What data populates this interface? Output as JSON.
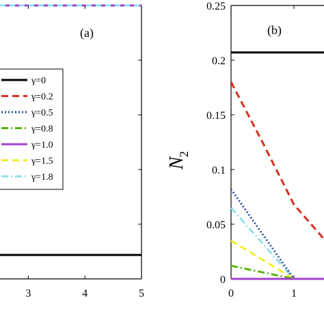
{
  "colors": {
    "black": "#000000",
    "red": "#d7301f",
    "blue": "#2c4c9c",
    "green": "#59b30a",
    "magenta": "#a23fd0",
    "yellow": "#f2ee2e",
    "cyan": "#8fe0e8"
  },
  "chart_data": [
    {
      "type": "line",
      "panel_label": "(a)",
      "xlabel": "",
      "ylabel": "",
      "xlim": [
        2.5,
        5
      ],
      "x_ticks": [
        "3",
        "4",
        "5"
      ],
      "legend": {
        "placement": "left",
        "entries": [
          {
            "label": "γ=0",
            "color": "#000000",
            "style": "solid"
          },
          {
            "label": "γ=0.2",
            "color": "#d7301f",
            "style": "dash"
          },
          {
            "label": "γ=0.5",
            "color": "#2c4c9c",
            "style": "dot"
          },
          {
            "label": "γ=0.8",
            "color": "#59b30a",
            "style": "dashdot"
          },
          {
            "label": "γ=1.0",
            "color": "#a23fd0",
            "style": "solid"
          },
          {
            "label": "γ=1.5",
            "color": "#f2ee2e",
            "style": "dash"
          },
          {
            "label": "γ=1.8",
            "color": "#8fe0e8",
            "style": "dashdot"
          }
        ]
      },
      "series": [
        {
          "name": "γ=0",
          "x": [
            2.5,
            5
          ],
          "y": [
            "bottom",
            "bottom"
          ]
        },
        {
          "name": "γ=1.0",
          "x": [
            2.5,
            5
          ],
          "y": [
            "top",
            "top"
          ]
        }
      ]
    },
    {
      "type": "line",
      "panel_label": "(b)",
      "ylabel_main": "N",
      "ylabel_sub": "2",
      "xlabel": "",
      "xlim": [
        0,
        1.5
      ],
      "ylim": [
        0,
        0.25
      ],
      "y_ticks": [
        "0",
        "0.05",
        "0.1",
        "0.15",
        "0.2",
        "0.25"
      ],
      "x_ticks": [
        "0",
        "1"
      ],
      "series": [
        {
          "name": "γ=0",
          "x": [
            0,
            1.5
          ],
          "y": [
            0.207,
            0.207
          ]
        },
        {
          "name": "γ=0.2",
          "x": [
            0,
            0.5,
            1.0,
            1.5
          ],
          "y": [
            0.18,
            0.125,
            0.068,
            0.035
          ]
        },
        {
          "name": "γ=0.5",
          "x": [
            0,
            1.0,
            1.5
          ],
          "y": [
            0.082,
            0,
            0
          ]
        },
        {
          "name": "γ=0.8",
          "x": [
            0,
            1.0,
            1.5
          ],
          "y": [
            0.012,
            0,
            0
          ]
        },
        {
          "name": "γ=1.0",
          "x": [
            0,
            1.5
          ],
          "y": [
            0,
            0
          ]
        },
        {
          "name": "γ=1.5",
          "x": [
            0,
            1.0,
            1.5
          ],
          "y": [
            0.035,
            0,
            0
          ]
        },
        {
          "name": "γ=1.8",
          "x": [
            0,
            1.0,
            1.5
          ],
          "y": [
            0.065,
            0,
            0
          ]
        }
      ]
    }
  ]
}
